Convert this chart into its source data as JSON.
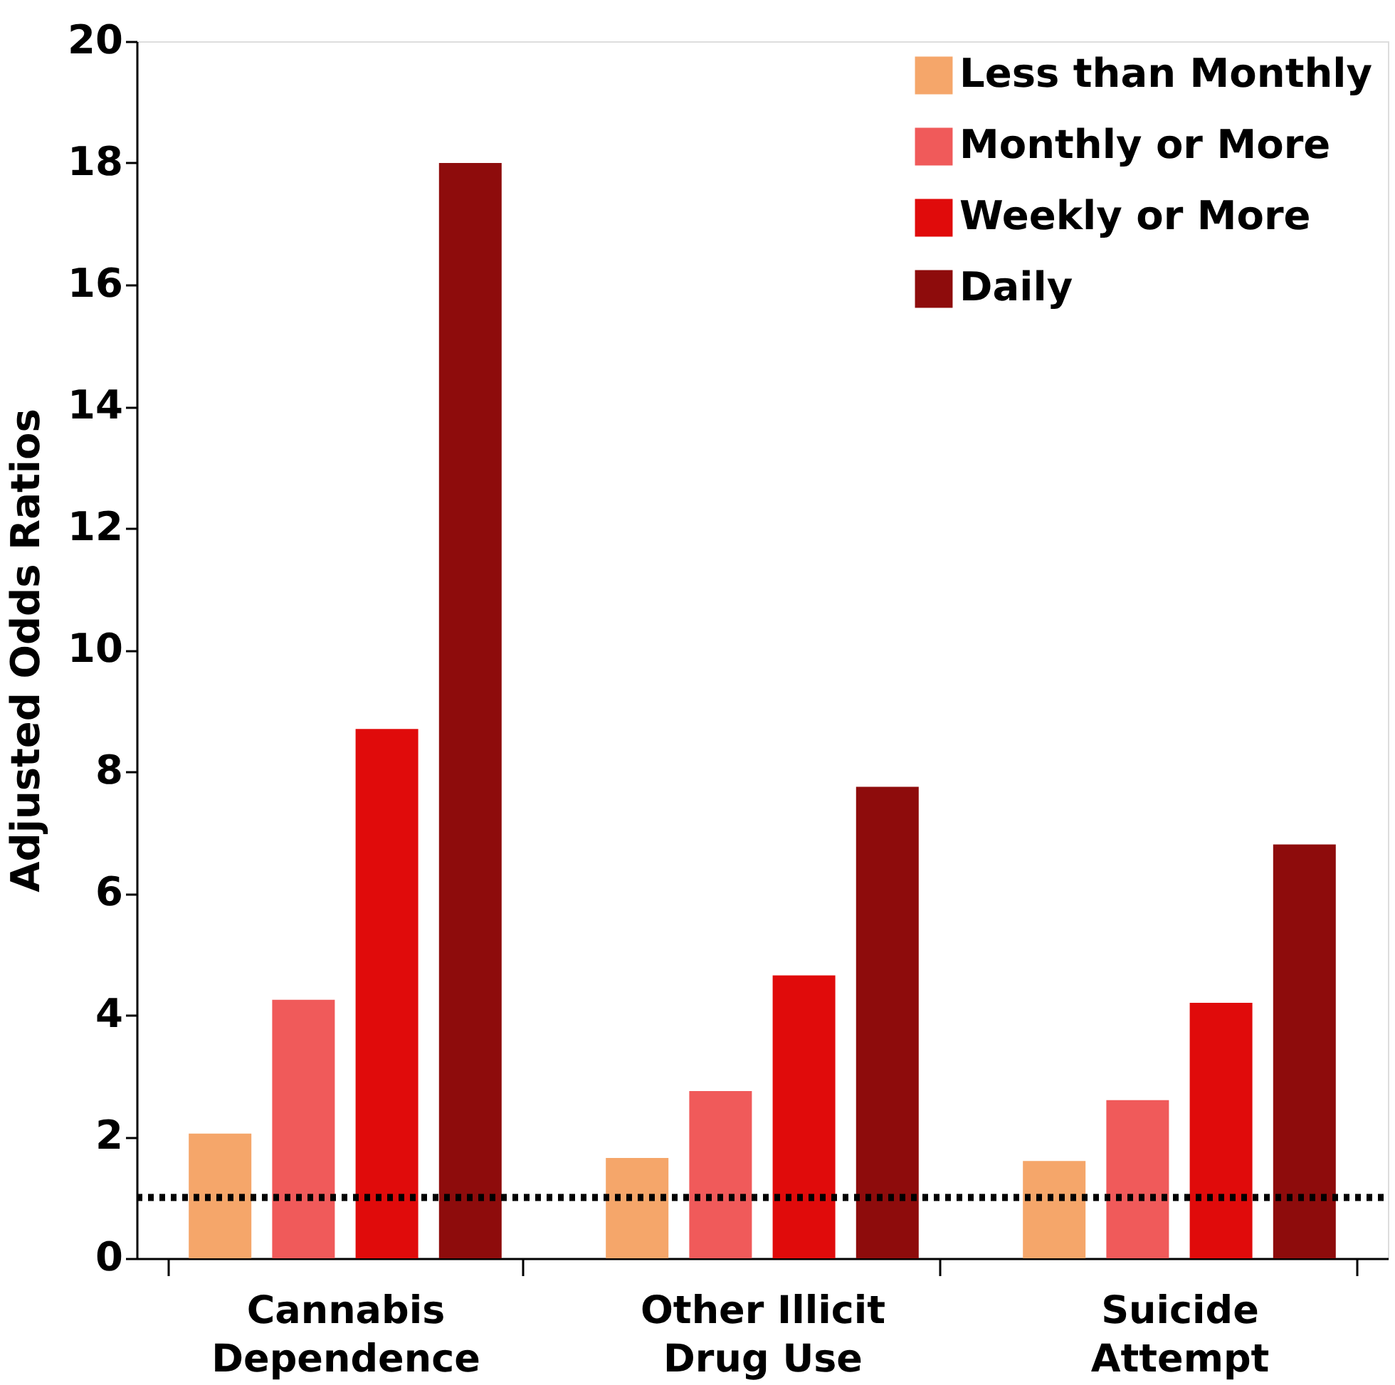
{
  "chart_data": {
    "type": "bar",
    "ylabel": "Adjusted Odds Ratios",
    "categories": [
      "Cannabis\nDependence",
      "Other Illicit\nDrug Use",
      "Suicide\nAttempt"
    ],
    "series": [
      {
        "name": "Less than Monthly",
        "color": "#f5a66a",
        "values": [
          2.05,
          1.65,
          1.6
        ]
      },
      {
        "name": "Monthly or More",
        "color": "#f05a5a",
        "values": [
          4.25,
          2.75,
          2.6
        ]
      },
      {
        "name": "Weekly or More",
        "color": "#e00b0b",
        "values": [
          8.7,
          4.65,
          4.2
        ]
      },
      {
        "name": "Daily",
        "color": "#8e0c0c",
        "values": [
          18.0,
          7.75,
          6.8
        ]
      }
    ],
    "ylim": [
      0,
      20
    ],
    "yticks": [
      0,
      2,
      4,
      6,
      8,
      10,
      12,
      14,
      16,
      18,
      20
    ],
    "grid": false,
    "legend": "top right",
    "ref_lines": [
      {
        "axis": "y",
        "value": 1,
        "color": "#000000",
        "line_style": "dotted"
      }
    ]
  }
}
